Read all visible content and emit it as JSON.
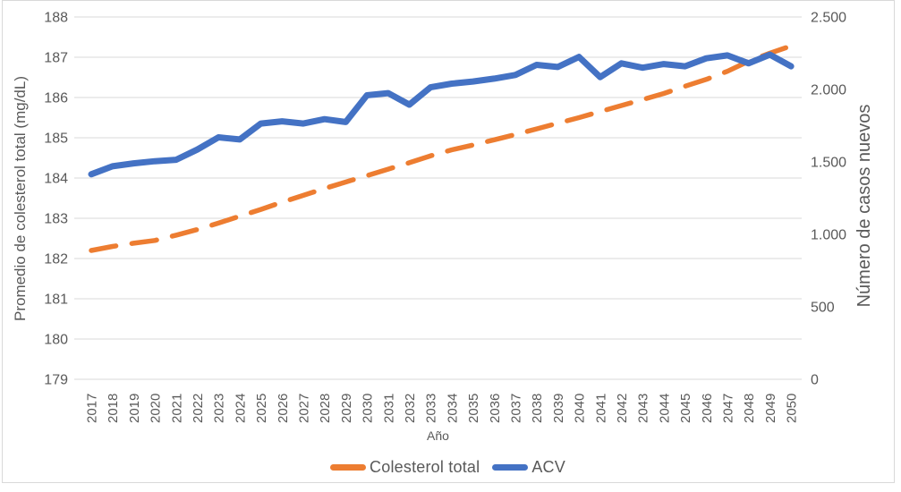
{
  "chart_data": {
    "type": "line",
    "x": [
      "2017",
      "2018",
      "2019",
      "2020",
      "2021",
      "2022",
      "2023",
      "2024",
      "2025",
      "2026",
      "2027",
      "2028",
      "2029",
      "2030",
      "2031",
      "2032",
      "2033",
      "2034",
      "2035",
      "2036",
      "2037",
      "2038",
      "2039",
      "2040",
      "2041",
      "2042",
      "2043",
      "2044",
      "2045",
      "2046",
      "2047",
      "2048",
      "2049",
      "2050"
    ],
    "xlabel": "Año",
    "series": [
      {
        "name": "Colesterol total",
        "axis": "left",
        "color": "#ED7D31",
        "style": "dashed",
        "values": [
          182.2,
          182.3,
          182.38,
          182.45,
          182.58,
          182.72,
          182.88,
          183.05,
          183.22,
          183.4,
          183.57,
          183.74,
          183.9,
          184.06,
          184.22,
          184.38,
          184.55,
          184.7,
          184.82,
          184.95,
          185.08,
          185.22,
          185.36,
          185.5,
          185.65,
          185.8,
          185.95,
          186.1,
          186.28,
          186.45,
          186.65,
          186.9,
          187.1,
          187.28
        ]
      },
      {
        "name": "ACV",
        "axis": "right",
        "color": "#4472C4",
        "style": "solid",
        "values": [
          1415,
          1470,
          1490,
          1505,
          1515,
          1585,
          1670,
          1655,
          1765,
          1780,
          1765,
          1795,
          1775,
          1960,
          1975,
          1895,
          2015,
          2040,
          2055,
          2075,
          2100,
          2170,
          2155,
          2225,
          2085,
          2180,
          2150,
          2175,
          2160,
          2215,
          2235,
          2180,
          2240,
          2160
        ]
      }
    ],
    "left_axis": {
      "label": "Promedio de colesterol total (mg/dL)",
      "min": 179,
      "max": 188,
      "step": 1,
      "tick_labels": [
        "188",
        "187",
        "186",
        "185",
        "184",
        "183",
        "182",
        "181",
        "180",
        "179"
      ]
    },
    "right_axis": {
      "label": "Número de casos nuevos",
      "min": 0,
      "max": 2500,
      "step": 500,
      "tick_labels": [
        "2.500",
        "2.000",
        "1.500",
        "1.000",
        "500",
        "0"
      ],
      "tick_values": [
        2500,
        2000,
        1500,
        1000,
        500,
        0
      ]
    },
    "grid": true,
    "legend_position": "bottom"
  },
  "colors": {
    "grid": "#D9D9D9",
    "border": "#D9D9D9",
    "text": "#595959",
    "background": "#FFFFFF"
  }
}
